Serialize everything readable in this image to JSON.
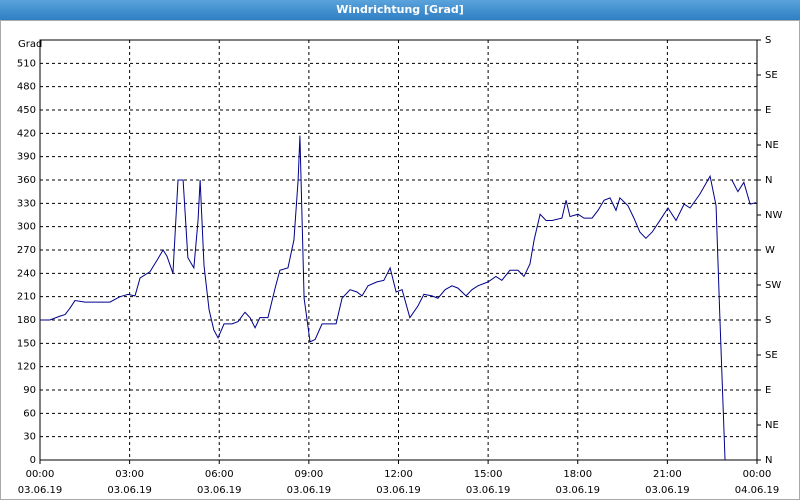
{
  "chart_data": {
    "type": "line",
    "title": "Windrichtung [Grad]",
    "y_label": "Grad",
    "xlim": [
      0,
      24
    ],
    "xticks": [
      {
        "value": 0,
        "label": "00:00",
        "date": "03.06.19"
      },
      {
        "value": 3,
        "label": "03:00",
        "date": "03.06.19"
      },
      {
        "value": 6,
        "label": "06:00",
        "date": "03.06.19"
      },
      {
        "value": 9,
        "label": "09:00",
        "date": "03.06.19"
      },
      {
        "value": 12,
        "label": "12:00",
        "date": "03.06.19"
      },
      {
        "value": 15,
        "label": "15:00",
        "date": "03.06.19"
      },
      {
        "value": 18,
        "label": "18:00",
        "date": "03.06.19"
      },
      {
        "value": 21,
        "label": "21:00",
        "date": "03.06.19"
      },
      {
        "value": 24,
        "label": "00:00",
        "date": "04.06.19"
      }
    ],
    "ylim": [
      0,
      540
    ],
    "yticks": [
      0,
      30,
      60,
      90,
      120,
      150,
      180,
      210,
      240,
      270,
      300,
      330,
      360,
      390,
      420,
      450,
      480,
      510
    ],
    "y2lim": [
      0,
      540
    ],
    "y2ticks": [
      {
        "value": 0,
        "label": "N"
      },
      {
        "value": 45,
        "label": "NE"
      },
      {
        "value": 90,
        "label": "E"
      },
      {
        "value": 135,
        "label": "SE"
      },
      {
        "value": 180,
        "label": "S"
      },
      {
        "value": 225,
        "label": "SW"
      },
      {
        "value": 270,
        "label": "W"
      },
      {
        "value": 315,
        "label": "NW"
      },
      {
        "value": 360,
        "label": "N"
      },
      {
        "value": 405,
        "label": "NE"
      },
      {
        "value": 450,
        "label": "E"
      },
      {
        "value": 495,
        "label": "SE"
      },
      {
        "value": 540,
        "label": "S"
      }
    ],
    "grid": true,
    "series": [
      {
        "color": "#00008b",
        "x": [
          0,
          0.33,
          0.67,
          0.84,
          1.0,
          1.17,
          1.51,
          1.84,
          2.34,
          2.68,
          2.95,
          3.18,
          3.35,
          3.68,
          3.92,
          4.12,
          4.25,
          4.45,
          4.62,
          4.79,
          4.95,
          5.15,
          5.29,
          5.36,
          5.49,
          5.66,
          5.82,
          5.96,
          6.16,
          6.43,
          6.63,
          6.86,
          7.03,
          7.2,
          7.36,
          7.63,
          7.87,
          8.03,
          8.3,
          8.5,
          8.64,
          8.7,
          8.84,
          9.04,
          9.21,
          9.44,
          9.71,
          9.91,
          10.11,
          10.38,
          10.61,
          10.78,
          10.98,
          11.28,
          11.51,
          11.72,
          11.92,
          12.12,
          12.38,
          12.65,
          12.85,
          13.12,
          13.32,
          13.56,
          13.79,
          13.99,
          14.26,
          14.46,
          14.66,
          15.0,
          15.26,
          15.46,
          15.73,
          16.0,
          16.2,
          16.4,
          16.54,
          16.74,
          16.94,
          17.14,
          17.47,
          17.61,
          17.74,
          18.01,
          18.21,
          18.48,
          18.68,
          18.88,
          19.08,
          19.28,
          19.41,
          19.68,
          19.88,
          20.08,
          20.28,
          20.49,
          20.75,
          21.02,
          21.29,
          21.56,
          21.76,
          22.09,
          22.43,
          22.63,
          22.76,
          22.93,
          23.05,
          23.16,
          23.36,
          23.56,
          23.77,
          23.97
        ],
        "values": [
          180,
          180,
          185,
          187,
          195,
          205,
          203,
          203,
          203,
          210,
          213,
          211,
          234,
          242,
          257,
          270,
          262,
          240,
          360,
          360,
          260,
          247,
          308,
          360,
          250,
          193,
          167,
          157,
          175,
          175,
          178,
          190,
          183,
          170,
          183,
          183,
          221,
          244,
          247,
          283,
          360,
          417,
          208,
          152,
          155,
          175,
          175,
          175,
          208,
          219,
          216,
          211,
          224,
          229,
          231,
          247,
          216,
          219,
          183,
          198,
          213,
          211,
          208,
          219,
          224,
          221,
          211,
          219,
          224,
          229,
          236,
          231,
          244,
          244,
          236,
          252,
          283,
          316,
          308,
          308,
          311,
          334,
          313,
          316,
          311,
          311,
          321,
          334,
          337,
          321,
          337,
          327,
          311,
          293,
          285,
          293,
          308,
          324,
          308,
          329,
          324,
          342,
          365,
          327,
          180,
          0,
          null,
          360,
          345,
          357,
          329,
          331
        ]
      }
    ]
  }
}
